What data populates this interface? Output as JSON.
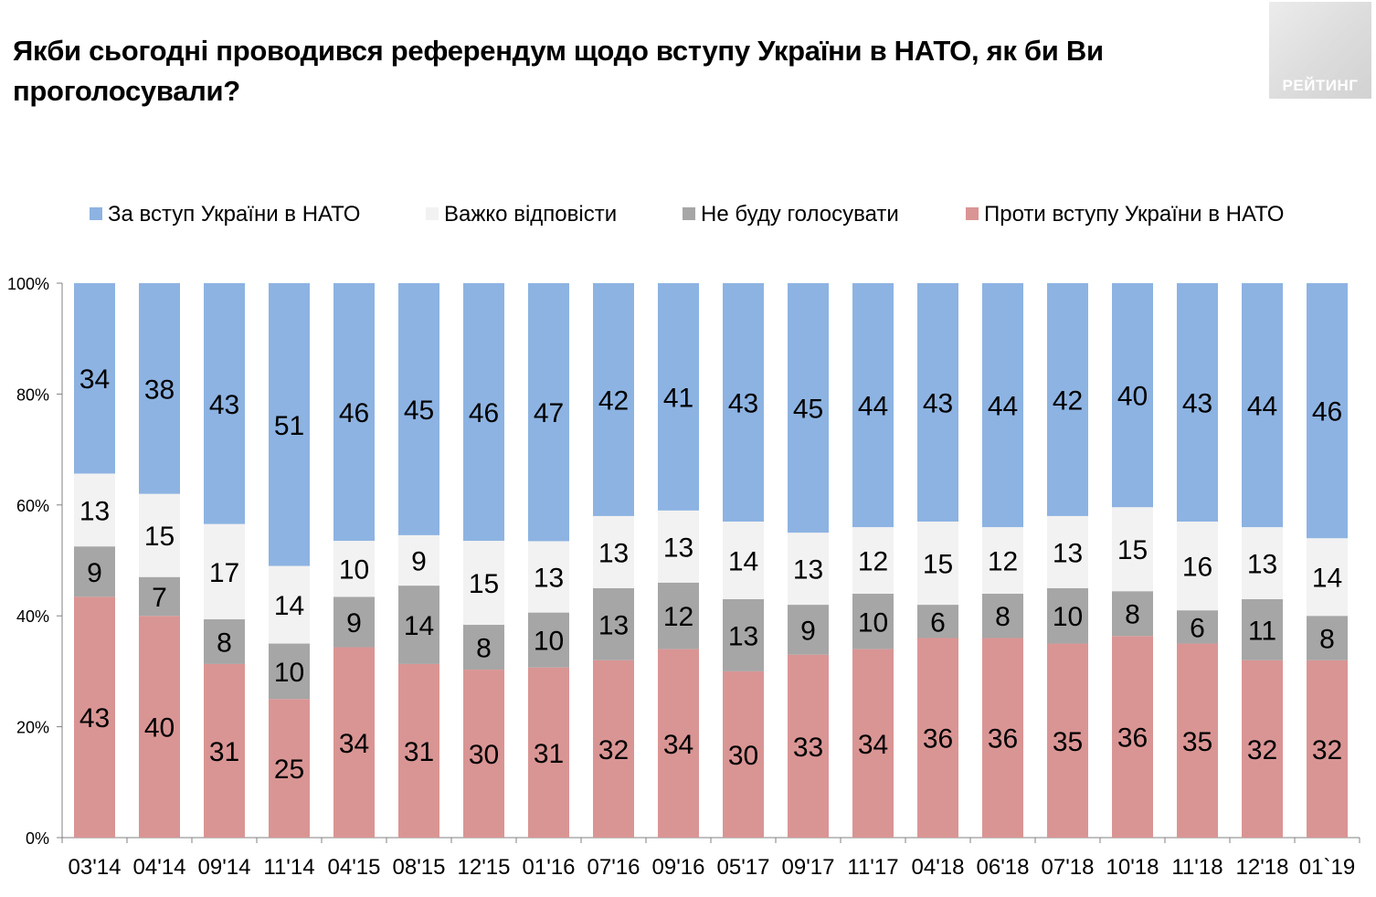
{
  "title": "Якби сьогодні проводився референдум щодо вступу України в НАТО, як би Ви проголосували?",
  "logo_text": "РЕЙТИНГ",
  "colors": {
    "for": "#8db3e2",
    "hard": "#f2f2f2",
    "not_vote": "#a6a6a6",
    "against": "#d99594",
    "axis": "#808080"
  },
  "chart_data": {
    "type": "bar",
    "stacked": true,
    "percent_stacked": true,
    "title": "Якби сьогодні проводився референдум щодо вступу України в НАТО, як би Ви проголосували?",
    "categories": [
      "03'14",
      "04'14",
      "09'14",
      "11'14",
      "04'15",
      "08'15",
      "12'15",
      "01'16",
      "07'16",
      "09'16",
      "05'17",
      "09'17",
      "11'17",
      "04'18",
      "06'18",
      "07'18",
      "10'18",
      "11'18",
      "12'18",
      "01`19"
    ],
    "series": [
      {
        "name": "Проти вступу України в НАТО",
        "key": "against",
        "values": [
          43,
          40,
          31,
          25,
          34,
          31,
          30,
          31,
          32,
          34,
          30,
          33,
          34,
          36,
          36,
          35,
          36,
          35,
          32,
          32
        ]
      },
      {
        "name": "Не буду голосувати",
        "key": "not_vote",
        "values": [
          9,
          7,
          8,
          10,
          9,
          14,
          8,
          10,
          13,
          12,
          13,
          9,
          10,
          6,
          8,
          10,
          8,
          6,
          11,
          8
        ]
      },
      {
        "name": "Важко відповісти",
        "key": "hard",
        "values": [
          13,
          15,
          17,
          14,
          10,
          9,
          15,
          13,
          13,
          13,
          14,
          13,
          12,
          15,
          12,
          13,
          15,
          16,
          13,
          14
        ]
      },
      {
        "name": "За вступ України в НАТО",
        "key": "for",
        "values": [
          34,
          38,
          43,
          51,
          46,
          45,
          46,
          47,
          42,
          41,
          43,
          45,
          44,
          43,
          44,
          42,
          40,
          43,
          44,
          46
        ]
      }
    ],
    "legend_order": [
      "for",
      "hard",
      "not_vote",
      "against"
    ],
    "y_ticks": [
      "0%",
      "20%",
      "40%",
      "60%",
      "80%",
      "100%"
    ],
    "ylim": [
      0,
      100
    ],
    "legend_position": "top",
    "grid": false
  }
}
